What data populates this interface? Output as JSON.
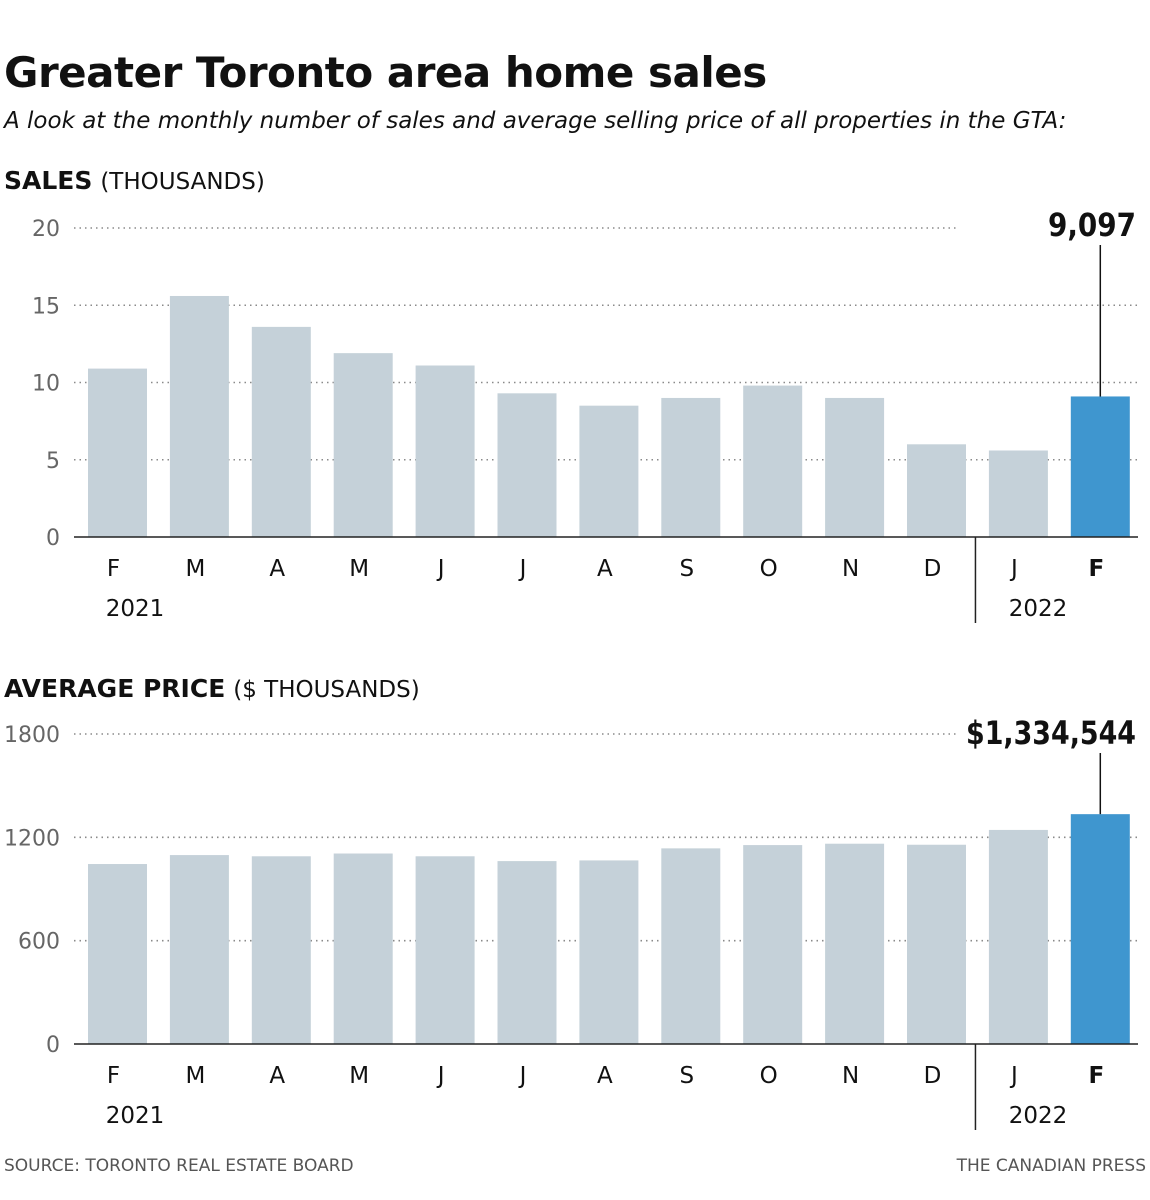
{
  "title": "Greater Toronto area home sales",
  "subtitle": "A look at the monthly number of sales and average selling price of all properties in the GTA:",
  "colors": {
    "bar": "#c5d1d9",
    "highlight": "#3f96cf",
    "grid": "#8a8a8a",
    "tick_text": "#666666"
  },
  "chart_data": [
    {
      "type": "bar",
      "title_bold": "SALES",
      "title_unit": "(THOUSANDS)",
      "categories": [
        "F",
        "M",
        "A",
        "M",
        "J",
        "J",
        "A",
        "S",
        "O",
        "N",
        "D",
        "J",
        "F"
      ],
      "year_labels": [
        "2021",
        "2022"
      ],
      "values": [
        10.9,
        15.6,
        13.6,
        11.9,
        11.1,
        9.3,
        8.5,
        9.0,
        9.8,
        9.0,
        6.0,
        5.6,
        9.097
      ],
      "ylim": [
        0,
        20
      ],
      "yticks": [
        0,
        5,
        10,
        15,
        20
      ],
      "highlight_index": 12,
      "callout": "9,097",
      "grid": true
    },
    {
      "type": "bar",
      "title_bold": "AVERAGE PRICE",
      "title_unit": "($ THOUSANDS)",
      "categories": [
        "F",
        "M",
        "A",
        "M",
        "J",
        "J",
        "A",
        "S",
        "O",
        "N",
        "D",
        "J",
        "F"
      ],
      "year_labels": [
        "2021",
        "2022"
      ],
      "values": [
        1045,
        1097,
        1090,
        1106,
        1090,
        1062,
        1066,
        1136,
        1155,
        1163,
        1157,
        1243,
        1334.544
      ],
      "ylim": [
        0,
        1800
      ],
      "yticks": [
        0,
        600,
        1200,
        1800
      ],
      "highlight_index": 12,
      "callout": "$1,334,544",
      "grid": true
    }
  ],
  "footer": {
    "source": "SOURCE: TORONTO REAL ESTATE BOARD",
    "credit": "THE CANADIAN PRESS"
  }
}
